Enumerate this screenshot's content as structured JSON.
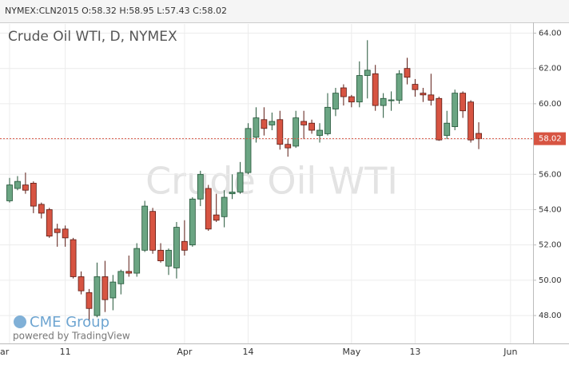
{
  "chart_data": {
    "type": "candlestick",
    "header": "NYMEX:CLN2015 O:58.32 H:58.95 L:57.43 C:58.02",
    "title": "Crude Oil WTI, D, NYMEX",
    "watermark": "Crude Oil WTI",
    "logo": "CME Group",
    "credit": "powered by TradingView",
    "categories": [
      "ar",
      null,
      null,
      null,
      null,
      null,
      null,
      "11",
      null,
      null,
      null,
      null,
      null,
      null,
      null,
      null,
      null,
      null,
      null,
      null,
      null,
      null,
      "Apr",
      null,
      null,
      null,
      null,
      null,
      null,
      null,
      "14",
      null,
      null,
      null,
      null,
      null,
      null,
      null,
      null,
      null,
      null,
      null,
      null,
      "May",
      null,
      null,
      null,
      null,
      null,
      null,
      null,
      "13",
      null,
      null,
      null,
      null,
      null,
      null,
      null,
      null,
      null,
      null,
      null,
      "Jun"
    ],
    "open": [
      54.5,
      55.2,
      55.4,
      55.5,
      54.3,
      54.0,
      52.9,
      52.9,
      52.3,
      50.2,
      49.3,
      48.0,
      50.2,
      49.0,
      49.8,
      50.5,
      50.4,
      51.7,
      53.9,
      51.7,
      50.8,
      50.7,
      52.2,
      52.0,
      54.6,
      55.2,
      53.7,
      53.6,
      54.9,
      55.0,
      56.1,
      58.1,
      59.1,
      58.8,
      59.1,
      57.7,
      57.6,
      59.0,
      58.9,
      58.2,
      58.3,
      59.7,
      60.9,
      60.4,
      60.1,
      61.6,
      61.7,
      59.9,
      60.17,
      60.2,
      62.0,
      61.1,
      60.6,
      60.5,
      60.3,
      58.2,
      58.7,
      60.6,
      60.1,
      58.32,
      null,
      null,
      null,
      null
    ],
    "high": [
      55.8,
      55.9,
      56.1,
      55.6,
      54.4,
      54.1,
      53.2,
      53.1,
      52.4,
      50.5,
      49.5,
      51.0,
      51.1,
      50.3,
      50.6,
      51.4,
      52.1,
      54.5,
      54.1,
      52.1,
      51.8,
      53.3,
      53.4,
      54.7,
      56.2,
      55.4,
      54.9,
      55.1,
      56.0,
      56.7,
      58.9,
      59.8,
      59.8,
      59.5,
      59.6,
      58.0,
      59.6,
      59.6,
      59.1,
      58.9,
      60.6,
      60.9,
      61.1,
      60.5,
      62.4,
      63.6,
      62.2,
      60.6,
      60.7,
      61.9,
      62.6,
      61.4,
      60.9,
      61.7,
      60.4,
      59.6,
      60.8,
      60.7,
      60.2,
      58.95,
      null,
      null,
      null,
      null
    ],
    "low": [
      54.4,
      55.1,
      54.9,
      53.8,
      53.5,
      52.4,
      51.9,
      51.9,
      50.1,
      49.2,
      47.7,
      47.9,
      48.2,
      48.3,
      49.2,
      50.2,
      50.2,
      51.6,
      51.5,
      51.0,
      50.3,
      50.1,
      51.4,
      51.9,
      54.2,
      52.8,
      53.3,
      53.0,
      54.6,
      54.9,
      56.0,
      57.8,
      58.2,
      58.5,
      57.4,
      57.0,
      57.5,
      58.0,
      58.3,
      57.8,
      58.2,
      59.3,
      59.9,
      59.8,
      59.8,
      60.3,
      59.6,
      59.2,
      59.6,
      60.0,
      61.1,
      60.4,
      60.1,
      59.9,
      57.9,
      58.0,
      58.5,
      59.2,
      57.8,
      57.43,
      null,
      null,
      null,
      null
    ],
    "close": [
      55.4,
      55.6,
      55.1,
      54.2,
      53.8,
      52.5,
      52.7,
      52.4,
      50.2,
      49.4,
      48.4,
      50.2,
      48.9,
      49.9,
      50.5,
      50.4,
      51.8,
      54.2,
      51.7,
      51.1,
      51.7,
      53.0,
      51.7,
      54.6,
      56.0,
      52.9,
      53.4,
      54.7,
      55.0,
      56.1,
      58.6,
      59.2,
      58.6,
      59.0,
      57.7,
      57.5,
      59.2,
      58.8,
      58.5,
      58.5,
      59.8,
      60.6,
      60.4,
      60.1,
      61.6,
      61.9,
      59.9,
      60.3,
      60.22,
      61.7,
      61.5,
      60.8,
      60.5,
      60.2,
      57.95,
      58.9,
      60.6,
      59.6,
      57.95,
      58.02,
      null,
      null,
      null,
      null
    ],
    "up_color": "#6ba583",
    "down_color": "#d75442",
    "last_price": {
      "value": 58.02,
      "label": "58.02"
    },
    "ylim": [
      46.42,
      64.52
    ],
    "yticks": [
      {
        "value": 48,
        "label": "48.00"
      },
      {
        "value": 50,
        "label": "50.00"
      },
      {
        "value": 52,
        "label": "52.00"
      },
      {
        "value": 54,
        "label": "54.00"
      },
      {
        "value": 56,
        "label": "56.00"
      },
      {
        "value": 58,
        "label": "58.00"
      },
      {
        "value": 60,
        "label": "60.00"
      },
      {
        "value": 62,
        "label": "62.00"
      },
      {
        "value": 64,
        "label": "64.00"
      }
    ],
    "grid": true
  }
}
